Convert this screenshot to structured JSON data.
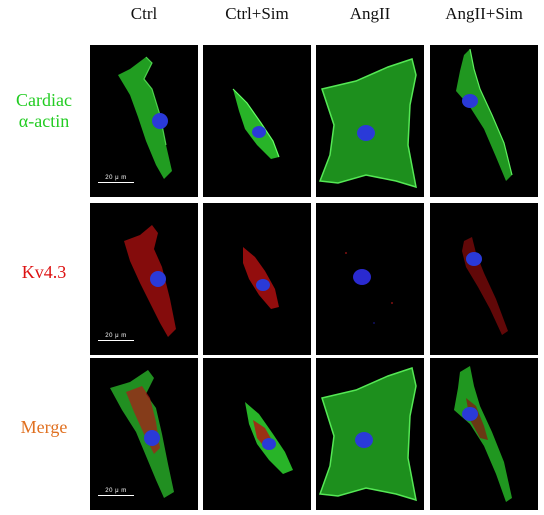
{
  "columns": [
    "Ctrl",
    "Ctrl+Sim",
    "AngII",
    "AngII+Sim"
  ],
  "rows": [
    {
      "lines": [
        "Cardiac",
        "α-actin"
      ],
      "color": "#22cc22"
    },
    {
      "lines": [
        "Kv4.3"
      ],
      "color": "#dd1111"
    },
    {
      "lines": [
        "Merge"
      ],
      "color": "#e07020"
    }
  ],
  "scale_bar": "20 μ m",
  "colors": {
    "actin": "#29c829",
    "kv43": "#b81010",
    "nucleus": "#2a3ad8",
    "background": "#000000"
  }
}
